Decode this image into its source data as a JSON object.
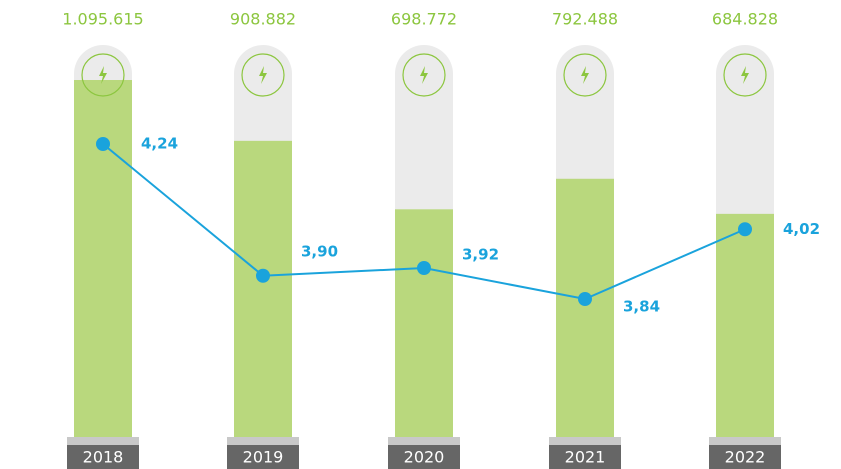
{
  "chart_data": {
    "type": "bar",
    "categories": [
      "2018",
      "2019",
      "2020",
      "2021",
      "2022"
    ],
    "series": [
      {
        "type": "bar",
        "color": "#b9d87d",
        "values": [
          1095615,
          908882,
          698772,
          792488,
          684828
        ],
        "value_labels": [
          "1.095.615",
          "908.882",
          "698.772",
          "792.488",
          "684.828"
        ]
      },
      {
        "type": "line",
        "color": "#1aa3dc",
        "values": [
          4.24,
          3.9,
          3.92,
          3.84,
          4.02
        ],
        "value_labels": [
          "4,24",
          "3,90",
          "3,92",
          "3,84",
          "4,02"
        ]
      }
    ]
  }
}
